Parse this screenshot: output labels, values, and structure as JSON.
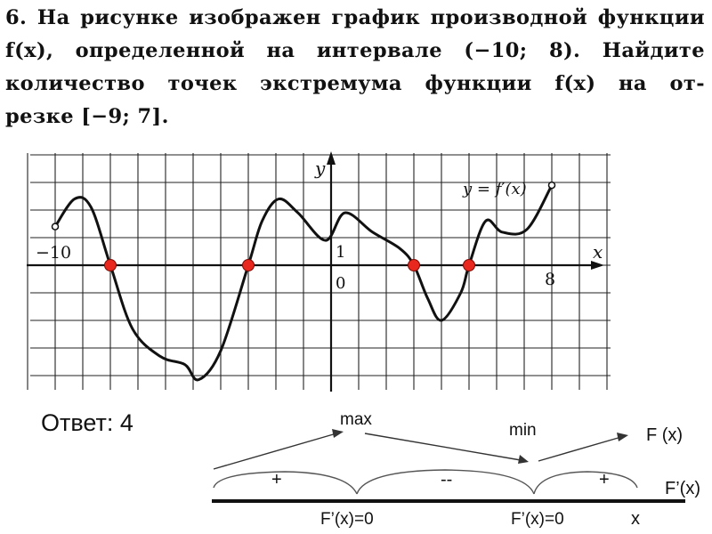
{
  "problem": {
    "line1": "6. На рисунке изображен график производной функции",
    "line2": "f(x), определенной на интервале (−10; 8). Найдите",
    "line3": "количество точек экстремума функции f(x) на от-",
    "line4": "резке [−9; 7]."
  },
  "graph": {
    "axis_x_label": "x",
    "axis_y_label": "y",
    "curve_label": "y = f′(x)",
    "tick_left": "−10",
    "tick_right": "8",
    "tick_one": "1",
    "tick_zero": "0",
    "x_range": [
      -10,
      8
    ],
    "zeros_x": [
      -8,
      -3,
      3,
      5
    ],
    "curve_points": [
      [
        -10,
        1.4
      ],
      [
        -9.3,
        2.4
      ],
      [
        -8.7,
        2.1
      ],
      [
        -8,
        0
      ],
      [
        -7.2,
        -2.3
      ],
      [
        -6.2,
        -3.3
      ],
      [
        -5.3,
        -3.6
      ],
      [
        -4.8,
        -4.15
      ],
      [
        -4,
        -3.1
      ],
      [
        -3,
        0
      ],
      [
        -2.5,
        1.6
      ],
      [
        -1.9,
        2.4
      ],
      [
        -1.2,
        1.9
      ],
      [
        -0.2,
        0.9
      ],
      [
        0.5,
        1.9
      ],
      [
        1.5,
        1.2
      ],
      [
        2.5,
        0.6
      ],
      [
        3,
        0
      ],
      [
        3.5,
        -1.2
      ],
      [
        4,
        -2.0
      ],
      [
        4.7,
        -1.0
      ],
      [
        5,
        0
      ],
      [
        5.6,
        1.6
      ],
      [
        6.2,
        1.2
      ],
      [
        7.1,
        1.3
      ],
      [
        8,
        2.9
      ]
    ],
    "zero_color": "#e8281e",
    "curve_color": "#111111"
  },
  "answer": {
    "text": "Ответ: 4"
  },
  "scheme": {
    "max_label": "max",
    "min_label": "min",
    "function_label": "F (x)",
    "derivative_label": "F’(x)",
    "x_label": "x",
    "zero1_label": "F’(x)=0",
    "zero2_label": "F’(x)=0",
    "sign1": "+",
    "sign2": "--",
    "sign3": "+"
  }
}
